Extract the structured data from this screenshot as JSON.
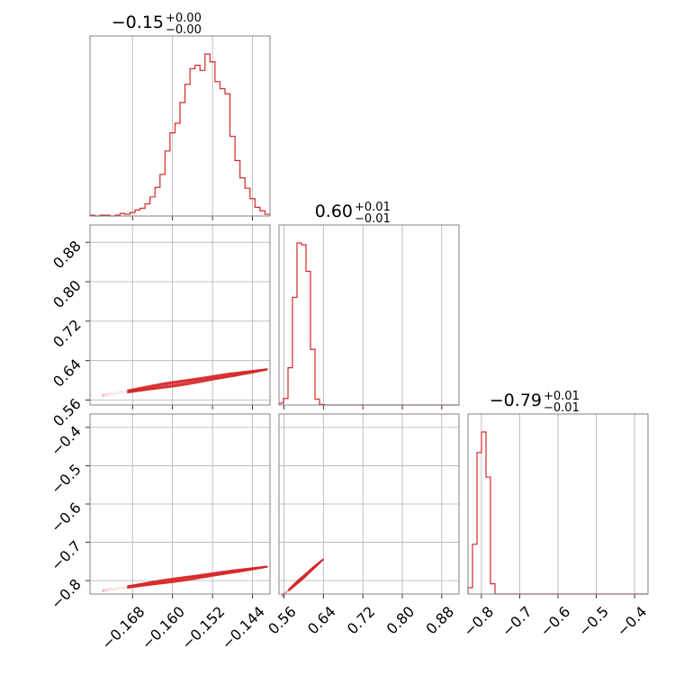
{
  "chart_data": {
    "type": "corner",
    "color": "#d62728",
    "grid": true,
    "titles": [
      {
        "main": "−0.15",
        "sup": "+0.00",
        "sub": "−0.00"
      },
      {
        "main": "0.60",
        "sup": "+0.01",
        "sub": "−0.01"
      },
      {
        "main": "−0.79",
        "sup": "+0.01",
        "sub": "−0.01"
      }
    ],
    "parameters": [
      {
        "range": [
          -0.1765,
          -0.1405
        ],
        "ticks": [
          -0.168,
          -0.16,
          -0.152,
          -0.144
        ],
        "tick_labels": [
          "−0.168",
          "−0.160",
          "−0.152",
          "−0.144"
        ],
        "hist_counts": [
          1,
          0,
          1,
          1,
          0,
          1,
          3,
          2,
          4,
          7,
          9,
          14,
          22,
          33,
          48,
          75,
          96,
          107,
          131,
          152,
          170,
          174,
          168,
          187,
          178,
          155,
          147,
          141,
          92,
          64,
          44,
          32,
          20,
          10,
          6,
          2
        ]
      },
      {
        "range": [
          0.55,
          0.915
        ],
        "ticks": [
          0.56,
          0.64,
          0.72,
          0.8,
          0.88
        ],
        "tick_labels": [
          "0.56",
          "0.64",
          "0.72",
          "0.80",
          "0.88"
        ],
        "hist_counts": [
          3,
          11,
          63,
          182,
          274,
          271,
          226,
          94,
          10,
          1,
          0,
          0,
          0,
          0,
          0,
          0,
          0,
          0,
          0,
          0,
          0,
          0,
          0,
          0,
          0,
          0,
          0,
          0,
          0,
          0,
          0,
          0,
          0,
          0,
          0,
          0,
          0,
          0,
          0,
          0
        ]
      },
      {
        "range": [
          -0.835,
          -0.365
        ],
        "ticks": [
          -0.8,
          -0.7,
          -0.6,
          -0.5,
          -0.4
        ],
        "tick_labels": [
          "−0.8",
          "−0.7",
          "−0.6",
          "−0.5",
          "−0.4"
        ],
        "hist_counts": [
          8,
          63,
          179,
          205,
          148,
          13,
          0,
          0,
          0,
          0,
          0,
          0,
          0,
          0,
          0,
          0,
          0,
          0,
          0,
          0,
          0,
          0,
          0,
          0,
          0,
          0,
          0,
          0,
          0,
          0,
          0,
          0,
          0,
          0,
          0,
          0,
          0,
          0,
          0,
          0
        ]
      }
    ],
    "correlations": [
      {
        "xparam": 0,
        "yparam": 1,
        "x_range": [
          -0.174,
          -0.141
        ],
        "slope": 1.6,
        "anchor": [
          -0.155,
          0.6
        ],
        "spread": 0.005
      },
      {
        "xparam": 0,
        "yparam": 2,
        "x_range": [
          -0.174,
          -0.141
        ],
        "slope": 1.9,
        "anchor": [
          -0.155,
          -0.79
        ],
        "spread": 0.005
      },
      {
        "xparam": 1,
        "yparam": 2,
        "x_range": [
          0.557,
          0.64
        ],
        "slope": 1.15,
        "anchor": [
          0.6,
          -0.79
        ],
        "spread": 0.004
      }
    ]
  }
}
